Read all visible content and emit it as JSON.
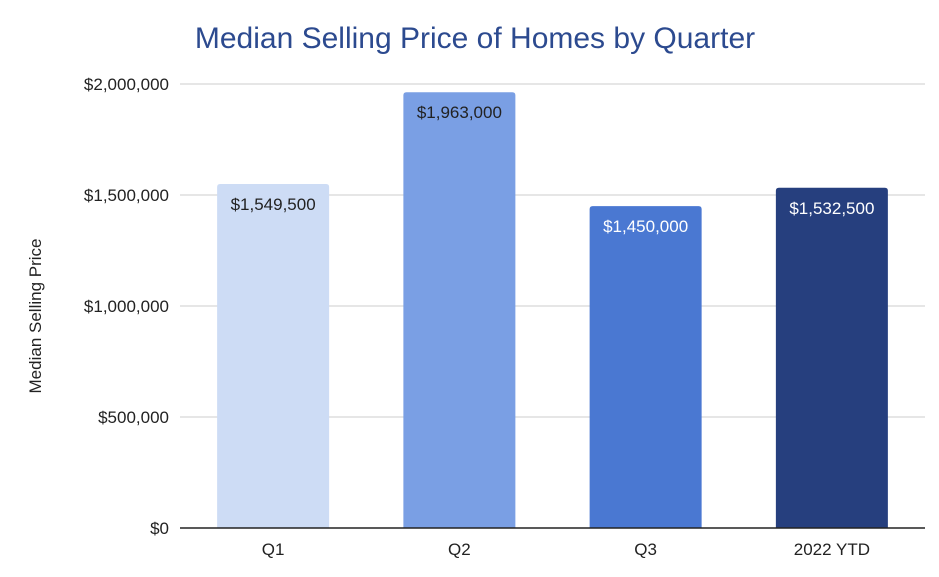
{
  "chart_data": {
    "type": "bar",
    "title": "Median Selling Price of Homes by Quarter",
    "xlabel": "",
    "ylabel": "Median Selling Price",
    "categories": [
      "Q1",
      "Q2",
      "Q3",
      "2022 YTD"
    ],
    "values": [
      1549500,
      1963000,
      1450000,
      1532500
    ],
    "data_labels": [
      "$1,549,500",
      "$1,963,000",
      "$1,450,000",
      "$1,532,500"
    ],
    "bar_colors": [
      "#cddcf5",
      "#7a9fe4",
      "#4a78d2",
      "#263f7e"
    ],
    "label_colors": [
      "#222222",
      "#222222",
      "#ffffff",
      "#ffffff"
    ],
    "ylim": [
      0,
      2000000
    ],
    "y_ticks": [
      0,
      500000,
      1000000,
      1500000,
      2000000
    ],
    "y_tick_labels": [
      "$0",
      "$500,000",
      "$1,000,000",
      "$1,500,000",
      "$2,000,000"
    ],
    "grid": true,
    "legend": "none",
    "title_color": "#2c4a8f",
    "grid_color": "#cccccc",
    "axis_color": "#222222"
  }
}
